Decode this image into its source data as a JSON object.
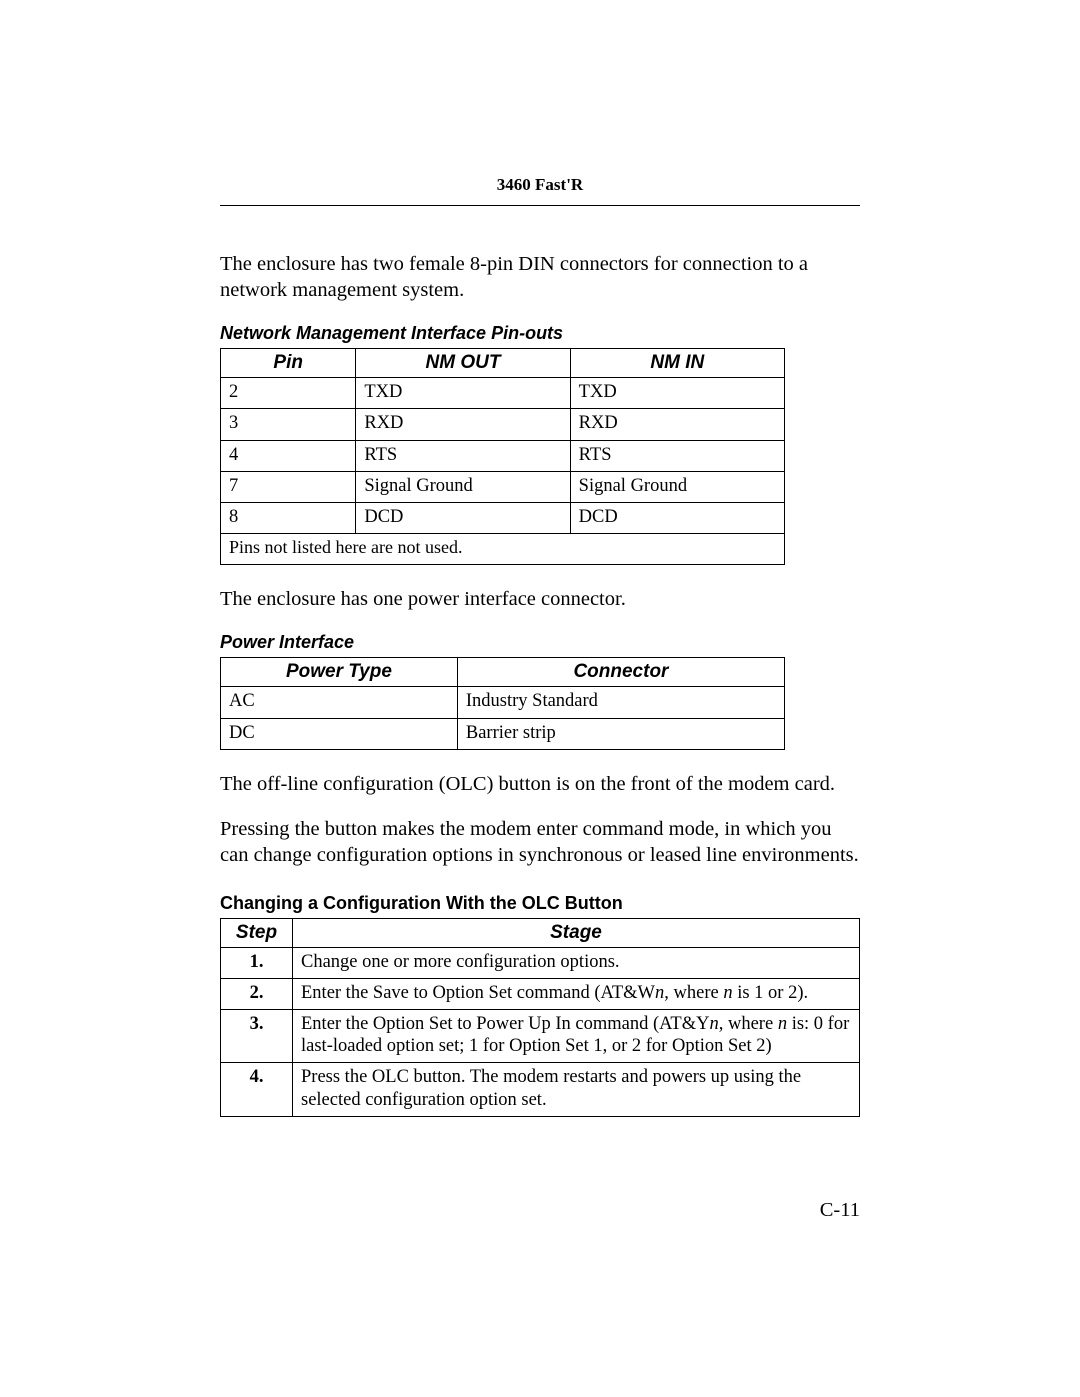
{
  "header": {
    "title": "3460 Fast'R"
  },
  "intro1": "The enclosure has two female 8-pin DIN connectors for connection to a network management system.",
  "table1": {
    "caption": "Network Management Interface Pin-outs",
    "headers": [
      "Pin",
      "NM OUT",
      "NM IN"
    ],
    "rows": [
      [
        "2",
        "TXD",
        "TXD"
      ],
      [
        "3",
        "RXD",
        "RXD"
      ],
      [
        "4",
        "RTS",
        "RTS"
      ],
      [
        "7",
        "Signal Ground",
        "Signal Ground"
      ],
      [
        "8",
        "DCD",
        "DCD"
      ]
    ],
    "footnote": "Pins not listed here are not used."
  },
  "intro2": "The enclosure has one power interface connector.",
  "table2": {
    "caption": "Power Interface",
    "headers": [
      "Power Type",
      "Connector"
    ],
    "rows": [
      [
        "AC",
        "Industry Standard"
      ],
      [
        "DC",
        "Barrier strip"
      ]
    ]
  },
  "para3": "The off-line configuration (OLC) button is on the front of the modem card.",
  "para4": "Pressing the button makes the modem enter command mode, in which you can change configuration options in synchronous or leased line environments.",
  "table3": {
    "heading": "Changing a Configuration With the OLC Button",
    "headers": [
      "Step",
      "Stage"
    ],
    "rows": [
      {
        "step": "1.",
        "stage_html": "Change one or more configuration options."
      },
      {
        "step": "2.",
        "stage_html": "Enter the Save to Option Set command (AT&W<span class=\"ital\">n</span>, where <span class=\"ital\">n</span> is 1 or 2)."
      },
      {
        "step": "3.",
        "stage_html": "Enter the Option Set to Power Up In command (AT&Y<span class=\"ital\">n</span>, where <span class=\"ital\">n</span> is: 0 for last-loaded option set; 1 for Option Set 1, or 2 for Option Set 2)"
      },
      {
        "step": "4.",
        "stage_html": "Press the OLC button. The modem restarts and powers up using the selected configuration option set."
      }
    ]
  },
  "page_number": "C-11"
}
